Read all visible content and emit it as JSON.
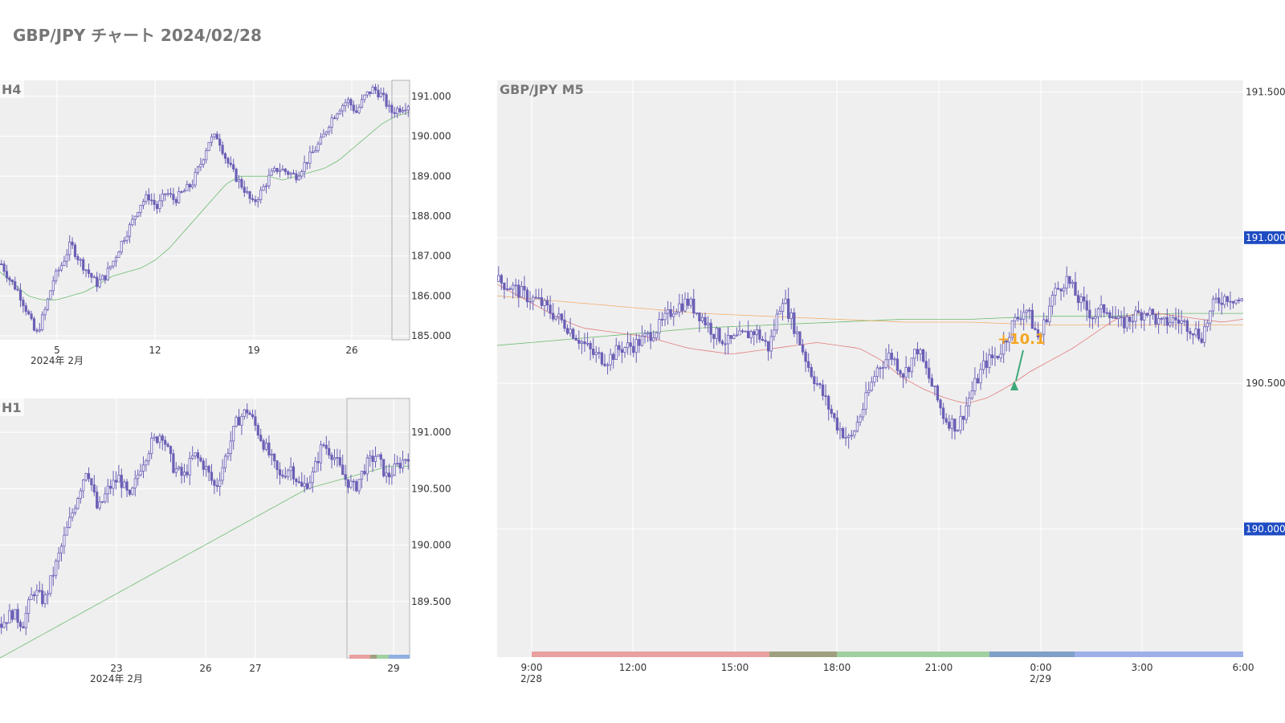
{
  "title": "GBP/JPY チャート 2024/02/28",
  "colors": {
    "candle": "#6a5fb5",
    "bg_plot": "#efefef",
    "grid": "#ffffff",
    "badge": "#1f4cc2",
    "signal": "#f5a623",
    "arrow": "#3fa87a"
  },
  "chart_data": [
    {
      "panel": "h4",
      "type": "candlestick",
      "label": "H4",
      "y_ticks": [
        "191.000",
        "190.000",
        "189.000",
        "188.000",
        "187.000",
        "186.000",
        "185.000"
      ],
      "x_ticks": [
        "5",
        "12",
        "19",
        "26"
      ],
      "x_sublabel": "2024年 2月",
      "ylim": [
        184.9,
        191.4
      ],
      "close_path": [
        186.8,
        186.4,
        186.1,
        185.6,
        185.0,
        185.6,
        186.4,
        186.8,
        187.3,
        186.9,
        186.6,
        186.3,
        186.5,
        186.9,
        187.4,
        187.8,
        188.3,
        188.5,
        188.2,
        188.6,
        188.4,
        188.6,
        188.8,
        189.3,
        189.9,
        190.0,
        189.4,
        189.0,
        188.7,
        188.3,
        188.6,
        189.0,
        189.2,
        189.1,
        189.0,
        189.3,
        189.6,
        189.9,
        190.4,
        190.7,
        190.9,
        190.6,
        191.0,
        191.2,
        191.0,
        190.6,
        190.7,
        190.8
      ],
      "ma_slow": [
        186.6,
        186.3,
        186.0,
        185.9,
        185.9,
        186.0,
        186.1,
        186.3,
        186.5,
        186.6,
        186.7,
        186.9,
        187.2,
        187.6,
        188.0,
        188.4,
        188.8,
        189.0,
        189.0,
        189.0,
        188.9,
        189.0,
        189.1,
        189.2,
        189.4,
        189.7,
        190.0,
        190.3,
        190.5,
        190.6
      ]
    },
    {
      "panel": "h1",
      "type": "candlestick",
      "label": "H1",
      "y_ticks": [
        "191.000",
        "190.500",
        "190.000",
        "189.500"
      ],
      "x_ticks": [
        "23",
        "26",
        "27",
        "29"
      ],
      "x_sublabel": "2024年 2月",
      "ylim": [
        189.0,
        191.3
      ],
      "close_path": [
        189.3,
        189.4,
        189.3,
        189.6,
        189.5,
        189.8,
        190.1,
        190.4,
        190.7,
        190.3,
        190.5,
        190.6,
        190.4,
        190.7,
        190.9,
        191.0,
        190.7,
        190.6,
        190.8,
        190.7,
        190.5,
        190.8,
        191.1,
        191.2,
        191.0,
        190.8,
        190.6,
        190.7,
        190.5,
        190.6,
        190.9,
        190.8,
        190.6,
        190.5,
        190.7,
        190.8,
        190.6,
        190.7,
        190.8
      ],
      "ma_slow": [
        189.0,
        189.1,
        189.2,
        189.3,
        189.4,
        189.5,
        189.6,
        189.7,
        189.8,
        189.9,
        190.0,
        190.1,
        190.2,
        190.3,
        190.4,
        190.5,
        190.55,
        190.6,
        190.65,
        190.7,
        190.7
      ]
    },
    {
      "panel": "m5",
      "type": "candlestick",
      "label": "GBP/JPY M5",
      "y_ticks": [
        "191.500",
        "191.000",
        "190.500",
        "190.000"
      ],
      "highlight_ticks": [
        "191.000",
        "190.000"
      ],
      "x_ticks": [
        "9:00",
        "12:00",
        "15:00",
        "18:00",
        "21:00",
        "0:00",
        "3:00",
        "6:00"
      ],
      "x_sublabels": [
        "2/28",
        "2/29"
      ],
      "ylim": [
        189.56,
        191.54
      ],
      "annotation": "+10.1",
      "close_path": [
        190.85,
        190.83,
        190.8,
        190.78,
        190.74,
        190.7,
        190.65,
        190.6,
        190.58,
        190.62,
        190.63,
        190.66,
        190.7,
        190.76,
        190.78,
        190.73,
        190.67,
        190.64,
        190.66,
        190.68,
        190.62,
        190.8,
        190.68,
        190.55,
        190.46,
        190.36,
        190.3,
        190.42,
        190.55,
        190.6,
        190.53,
        190.62,
        190.5,
        190.38,
        190.35,
        190.47,
        190.57,
        190.6,
        190.7,
        190.76,
        190.65,
        190.8,
        190.86,
        190.78,
        190.73,
        190.76,
        190.7,
        190.73,
        190.75,
        190.7,
        190.72,
        190.7,
        190.66,
        190.78,
        190.8,
        190.78
      ],
      "ma_fast": [
        190.84,
        190.8,
        190.76,
        190.72,
        190.69,
        190.68,
        190.67,
        190.66,
        190.64,
        190.62,
        190.61,
        190.6,
        190.61,
        190.62,
        190.63,
        190.64,
        190.63,
        190.62,
        190.58,
        190.52,
        190.48,
        190.45,
        190.43,
        190.45,
        190.49,
        190.54,
        190.58,
        190.62,
        190.67,
        190.72,
        190.74,
        190.74,
        190.73,
        190.72,
        190.71,
        190.72
      ],
      "ma_mid": [
        190.8,
        190.78,
        190.76,
        190.74,
        190.73,
        190.72,
        190.71,
        190.71,
        190.7,
        190.7,
        190.7,
        190.7
      ],
      "ma_slow": [
        190.63,
        190.65,
        190.67,
        190.69,
        190.7,
        190.71,
        190.72,
        190.72,
        190.73,
        190.73,
        190.74,
        190.74
      ]
    }
  ]
}
